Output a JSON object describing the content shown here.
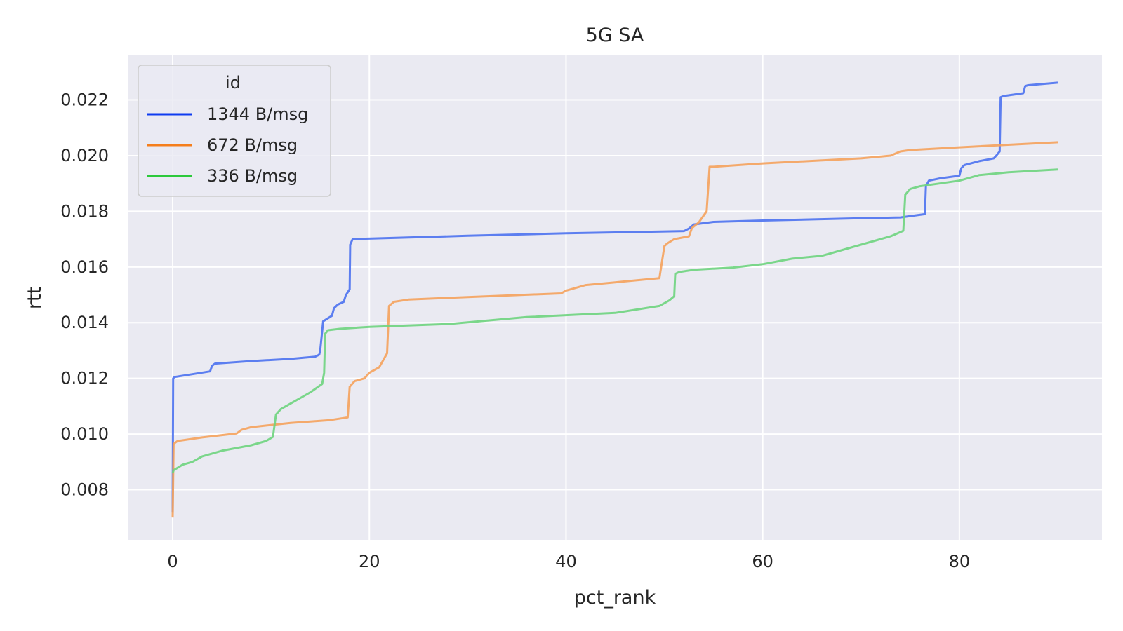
{
  "chart_data": {
    "type": "line",
    "title": "5G SA",
    "xlabel": "pct_rank",
    "ylabel": "rtt",
    "xlim": [
      -4.5,
      94.5
    ],
    "ylim": [
      0.0062,
      0.0236
    ],
    "xticks": [
      0,
      20,
      40,
      60,
      80
    ],
    "yticks": [
      0.008,
      0.01,
      0.012,
      0.014,
      0.016,
      0.018,
      0.02,
      0.022
    ],
    "ytick_format": 3,
    "grid": true,
    "legend": {
      "title": "id",
      "position": "top-left"
    },
    "series": [
      {
        "name": "1344 B/msg",
        "color": "#4c72f0",
        "legend_color": "#0f3cf0",
        "x": [
          0,
          0.05,
          0.2,
          2,
          3.8,
          4.0,
          4.3,
          8,
          12,
          14.5,
          14.9,
          15.0,
          15.3,
          16.2,
          16.4,
          16.8,
          17.4,
          17.6,
          18.0,
          18.05,
          18.3,
          30,
          40,
          52,
          52.5,
          53,
          55,
          60,
          70,
          74,
          76.5,
          76.6,
          76.9,
          78,
          80,
          80.2,
          80.5,
          82,
          83.5,
          83.8,
          84.1,
          84.2,
          84.5,
          86.5,
          86.7,
          87,
          90
        ],
        "y": [
          0.0072,
          0.012,
          0.01205,
          0.01215,
          0.01225,
          0.01245,
          0.01253,
          0.01262,
          0.0127,
          0.01278,
          0.01285,
          0.013,
          0.01405,
          0.01425,
          0.01452,
          0.01465,
          0.01475,
          0.01498,
          0.0152,
          0.0168,
          0.017,
          0.01712,
          0.01721,
          0.01729,
          0.01738,
          0.01753,
          0.01762,
          0.01767,
          0.01775,
          0.01778,
          0.0179,
          0.0189,
          0.0191,
          0.01918,
          0.01928,
          0.01955,
          0.01966,
          0.0198,
          0.0199,
          0.02002,
          0.02015,
          0.0221,
          0.02214,
          0.02224,
          0.0225,
          0.02253,
          0.02262
        ]
      },
      {
        "name": "672 B/msg",
        "color": "#f5a25c",
        "legend_color": "#f57e1c",
        "x": [
          0,
          0.1,
          0.5,
          3,
          6.5,
          7,
          8,
          12,
          16,
          17.8,
          18.0,
          18.5,
          19.5,
          20,
          21,
          21.8,
          22.0,
          22.5,
          24,
          30,
          39.5,
          40,
          42,
          45,
          49.5,
          50.0,
          50.3,
          51,
          52.5,
          52.8,
          53.5,
          54.3,
          54.6,
          55,
          60,
          70,
          73,
          74,
          75,
          80,
          90
        ],
        "y": [
          0.007,
          0.00965,
          0.00975,
          0.00988,
          0.01002,
          0.01015,
          0.01025,
          0.0104,
          0.0105,
          0.0106,
          0.0117,
          0.0119,
          0.012,
          0.0122,
          0.0124,
          0.0129,
          0.0146,
          0.01475,
          0.01483,
          0.01492,
          0.01505,
          0.01515,
          0.01535,
          0.01545,
          0.0156,
          0.01675,
          0.01685,
          0.017,
          0.0171,
          0.0174,
          0.0176,
          0.018,
          0.0196,
          0.0196,
          0.01972,
          0.0199,
          0.02,
          0.02015,
          0.0202,
          0.0203,
          0.02048
        ]
      },
      {
        "name": "336 B/msg",
        "color": "#6ed47e",
        "legend_color": "#2cc93b",
        "x": [
          0,
          0.1,
          1,
          2,
          3,
          5,
          8,
          9.5,
          10.2,
          10.5,
          11,
          12,
          13,
          14,
          15.2,
          15.4,
          15.5,
          15.8,
          17,
          20,
          28,
          36,
          45,
          49.5,
          50.5,
          51.0,
          51.1,
          51.5,
          53,
          57,
          60,
          63,
          66,
          68,
          70,
          73,
          74.3,
          74.5,
          75,
          76,
          78,
          80,
          82,
          85,
          90
        ],
        "y": [
          0.0086,
          0.0087,
          0.0089,
          0.009,
          0.0092,
          0.0094,
          0.0096,
          0.00975,
          0.0099,
          0.0107,
          0.0109,
          0.0111,
          0.0113,
          0.0115,
          0.0118,
          0.0122,
          0.0136,
          0.01373,
          0.01378,
          0.01385,
          0.01395,
          0.0142,
          0.01435,
          0.0146,
          0.0148,
          0.01495,
          0.01575,
          0.01582,
          0.0159,
          0.01598,
          0.0161,
          0.0163,
          0.0164,
          0.0166,
          0.0168,
          0.0171,
          0.0173,
          0.0186,
          0.0188,
          0.0189,
          0.019,
          0.0191,
          0.0193,
          0.0194,
          0.0195
        ]
      }
    ]
  }
}
